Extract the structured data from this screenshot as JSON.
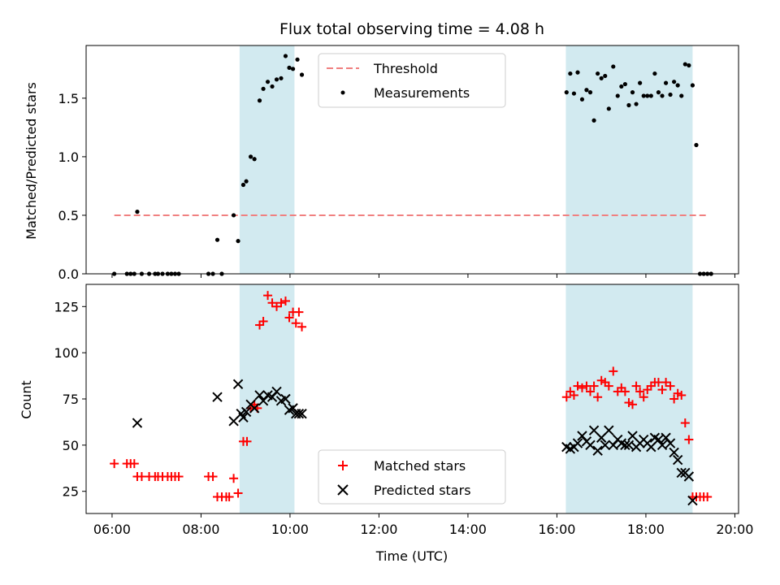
{
  "chart_data": [
    {
      "type": "scatter",
      "title": "Flux total observing time = 4.08 h",
      "ylabel": "Matched/Predicted stars",
      "xlim": [
        "05:25",
        "20:05"
      ],
      "ylim": [
        0,
        1.95
      ],
      "yticks": [
        "0.0",
        "0.5",
        "1.0",
        "1.5"
      ],
      "ytick_values": [
        0,
        0.5,
        1.0,
        1.5
      ],
      "shaded_intervals": [
        [
          "08:52",
          "10:06"
        ],
        [
          "16:12",
          "19:03"
        ]
      ],
      "shade_color": "#d2eaf0",
      "legend_position": "top-center",
      "threshold": {
        "name": "Threshold",
        "value": 0.5,
        "x_range": [
          "06:03",
          "19:23"
        ],
        "color": "#f08080"
      },
      "series": [
        {
          "name": "Measurements",
          "color": "#000000",
          "points": [
            [
              "06:03",
              0.0
            ],
            [
              "06:20",
              0.0
            ],
            [
              "06:25",
              0.0
            ],
            [
              "06:30",
              0.0
            ],
            [
              "06:34",
              0.53
            ],
            [
              "06:40",
              0.0
            ],
            [
              "06:50",
              0.0
            ],
            [
              "06:58",
              0.0
            ],
            [
              "07:02",
              0.0
            ],
            [
              "07:08",
              0.0
            ],
            [
              "07:15",
              0.0
            ],
            [
              "07:20",
              0.0
            ],
            [
              "07:25",
              0.0
            ],
            [
              "07:30",
              0.0
            ],
            [
              "08:10",
              0.0
            ],
            [
              "08:16",
              0.0
            ],
            [
              "08:22",
              0.29
            ],
            [
              "08:28",
              0.0
            ],
            [
              "08:44",
              0.5
            ],
            [
              "08:50",
              0.28
            ],
            [
              "08:57",
              0.76
            ],
            [
              "09:01",
              0.79
            ],
            [
              "09:07",
              1.0
            ],
            [
              "09:12",
              0.98
            ],
            [
              "09:19",
              1.48
            ],
            [
              "09:24",
              1.58
            ],
            [
              "09:30",
              1.64
            ],
            [
              "09:36",
              1.6
            ],
            [
              "09:42",
              1.66
            ],
            [
              "09:48",
              1.67
            ],
            [
              "09:54",
              1.86
            ],
            [
              "09:59",
              1.76
            ],
            [
              "10:04",
              1.75
            ],
            [
              "10:10",
              1.83
            ],
            [
              "10:16",
              1.7
            ],
            [
              "16:13",
              1.55
            ],
            [
              "16:18",
              1.71
            ],
            [
              "16:23",
              1.54
            ],
            [
              "16:28",
              1.72
            ],
            [
              "16:34",
              1.49
            ],
            [
              "16:40",
              1.57
            ],
            [
              "16:45",
              1.55
            ],
            [
              "16:50",
              1.31
            ],
            [
              "16:55",
              1.71
            ],
            [
              "17:00",
              1.67
            ],
            [
              "17:05",
              1.69
            ],
            [
              "17:10",
              1.41
            ],
            [
              "17:16",
              1.77
            ],
            [
              "17:22",
              1.52
            ],
            [
              "17:27",
              1.6
            ],
            [
              "17:32",
              1.62
            ],
            [
              "17:37",
              1.44
            ],
            [
              "17:42",
              1.55
            ],
            [
              "17:47",
              1.45
            ],
            [
              "17:52",
              1.63
            ],
            [
              "17:57",
              1.52
            ],
            [
              "18:02",
              1.52
            ],
            [
              "18:07",
              1.52
            ],
            [
              "18:12",
              1.71
            ],
            [
              "18:17",
              1.55
            ],
            [
              "18:22",
              1.52
            ],
            [
              "18:27",
              1.63
            ],
            [
              "18:33",
              1.53
            ],
            [
              "18:38",
              1.64
            ],
            [
              "18:43",
              1.61
            ],
            [
              "18:48",
              1.52
            ],
            [
              "18:53",
              1.79
            ],
            [
              "18:58",
              1.78
            ],
            [
              "19:03",
              1.61
            ],
            [
              "19:08",
              1.1
            ],
            [
              "19:13",
              0.0
            ],
            [
              "19:18",
              0.0
            ],
            [
              "19:23",
              0.0
            ],
            [
              "19:28",
              0.0
            ]
          ]
        }
      ]
    },
    {
      "type": "scatter",
      "xlabel": "Time (UTC)",
      "ylabel": "Count",
      "xlim": [
        "05:25",
        "20:05"
      ],
      "xticks": [
        "06:00",
        "08:00",
        "10:00",
        "12:00",
        "14:00",
        "16:00",
        "18:00",
        "20:00"
      ],
      "ylim": [
        13,
        137
      ],
      "yticks": [
        "25",
        "50",
        "75",
        "100",
        "125"
      ],
      "ytick_values": [
        25,
        50,
        75,
        100,
        125
      ],
      "shaded_intervals": [
        [
          "08:52",
          "10:06"
        ],
        [
          "16:12",
          "19:03"
        ]
      ],
      "legend_position": "bottom-center",
      "series": [
        {
          "name": "Matched stars",
          "color": "#ff0000",
          "marker": "plus",
          "points": [
            [
              "06:03",
              40
            ],
            [
              "06:20",
              40
            ],
            [
              "06:25",
              40
            ],
            [
              "06:30",
              40
            ],
            [
              "06:34",
              33
            ],
            [
              "06:40",
              33
            ],
            [
              "06:50",
              33
            ],
            [
              "06:58",
              33
            ],
            [
              "07:02",
              33
            ],
            [
              "07:08",
              33
            ],
            [
              "07:15",
              33
            ],
            [
              "07:20",
              33
            ],
            [
              "07:25",
              33
            ],
            [
              "07:30",
              33
            ],
            [
              "08:10",
              33
            ],
            [
              "08:16",
              33
            ],
            [
              "08:22",
              22
            ],
            [
              "08:28",
              22
            ],
            [
              "08:34",
              22
            ],
            [
              "08:38",
              22
            ],
            [
              "08:44",
              32
            ],
            [
              "08:50",
              24
            ],
            [
              "08:57",
              52
            ],
            [
              "09:02",
              52
            ],
            [
              "09:07",
              70
            ],
            [
              "09:12",
              72
            ],
            [
              "09:16",
              70
            ],
            [
              "09:19",
              115
            ],
            [
              "09:24",
              117
            ],
            [
              "09:30",
              131
            ],
            [
              "09:36",
              127
            ],
            [
              "09:42",
              125
            ],
            [
              "09:48",
              127
            ],
            [
              "09:54",
              128
            ],
            [
              "09:59",
              119
            ],
            [
              "10:04",
              122
            ],
            [
              "10:08",
              116
            ],
            [
              "10:12",
              122
            ],
            [
              "10:16",
              114
            ],
            [
              "16:13",
              76
            ],
            [
              "16:18",
              79
            ],
            [
              "16:23",
              77
            ],
            [
              "16:28",
              82
            ],
            [
              "16:34",
              81
            ],
            [
              "16:40",
              82
            ],
            [
              "16:45",
              79
            ],
            [
              "16:50",
              82
            ],
            [
              "16:55",
              76
            ],
            [
              "17:00",
              85
            ],
            [
              "17:05",
              84
            ],
            [
              "17:10",
              82
            ],
            [
              "17:16",
              90
            ],
            [
              "17:22",
              79
            ],
            [
              "17:27",
              81
            ],
            [
              "17:32",
              79
            ],
            [
              "17:37",
              73
            ],
            [
              "17:42",
              72
            ],
            [
              "17:47",
              82
            ],
            [
              "17:52",
              79
            ],
            [
              "17:57",
              76
            ],
            [
              "18:02",
              80
            ],
            [
              "18:07",
              82
            ],
            [
              "18:12",
              84
            ],
            [
              "18:17",
              84
            ],
            [
              "18:22",
              80
            ],
            [
              "18:27",
              84
            ],
            [
              "18:33",
              82
            ],
            [
              "18:38",
              75
            ],
            [
              "18:43",
              78
            ],
            [
              "18:48",
              77
            ],
            [
              "18:53",
              62
            ],
            [
              "18:58",
              53
            ],
            [
              "19:03",
              22
            ],
            [
              "19:08",
              22
            ],
            [
              "19:13",
              22
            ],
            [
              "19:18",
              22
            ],
            [
              "19:23",
              22
            ]
          ]
        },
        {
          "name": "Predicted stars",
          "color": "#000000",
          "marker": "x",
          "points": [
            [
              "06:34",
              62
            ],
            [
              "08:22",
              76
            ],
            [
              "08:44",
              63
            ],
            [
              "08:50",
              83
            ],
            [
              "08:54",
              67
            ],
            [
              "08:57",
              65
            ],
            [
              "09:01",
              68
            ],
            [
              "09:07",
              72
            ],
            [
              "09:12",
              70
            ],
            [
              "09:19",
              77
            ],
            [
              "09:24",
              74
            ],
            [
              "09:30",
              77
            ],
            [
              "09:36",
              76
            ],
            [
              "09:42",
              79
            ],
            [
              "09:48",
              74
            ],
            [
              "09:54",
              75
            ],
            [
              "09:59",
              69
            ],
            [
              "10:04",
              70
            ],
            [
              "10:08",
              67
            ],
            [
              "10:12",
              67
            ],
            [
              "10:16",
              67
            ],
            [
              "16:13",
              49
            ],
            [
              "16:18",
              48
            ],
            [
              "16:23",
              49
            ],
            [
              "16:28",
              51
            ],
            [
              "16:34",
              55
            ],
            [
              "16:40",
              52
            ],
            [
              "16:45",
              50
            ],
            [
              "16:50",
              58
            ],
            [
              "16:55",
              47
            ],
            [
              "17:00",
              54
            ],
            [
              "17:05",
              50
            ],
            [
              "17:10",
              58
            ],
            [
              "17:16",
              50
            ],
            [
              "17:22",
              53
            ],
            [
              "17:27",
              51
            ],
            [
              "17:32",
              50
            ],
            [
              "17:37",
              50
            ],
            [
              "17:42",
              55
            ],
            [
              "17:47",
              49
            ],
            [
              "17:52",
              51
            ],
            [
              "17:57",
              53
            ],
            [
              "18:02",
              51
            ],
            [
              "18:07",
              49
            ],
            [
              "18:12",
              54
            ],
            [
              "18:17",
              53
            ],
            [
              "18:22",
              50
            ],
            [
              "18:27",
              54
            ],
            [
              "18:33",
              51
            ],
            [
              "18:38",
              46
            ],
            [
              "18:43",
              42
            ],
            [
              "18:48",
              35
            ],
            [
              "18:53",
              35
            ],
            [
              "18:58",
              33
            ],
            [
              "19:03",
              20
            ]
          ]
        }
      ]
    }
  ]
}
